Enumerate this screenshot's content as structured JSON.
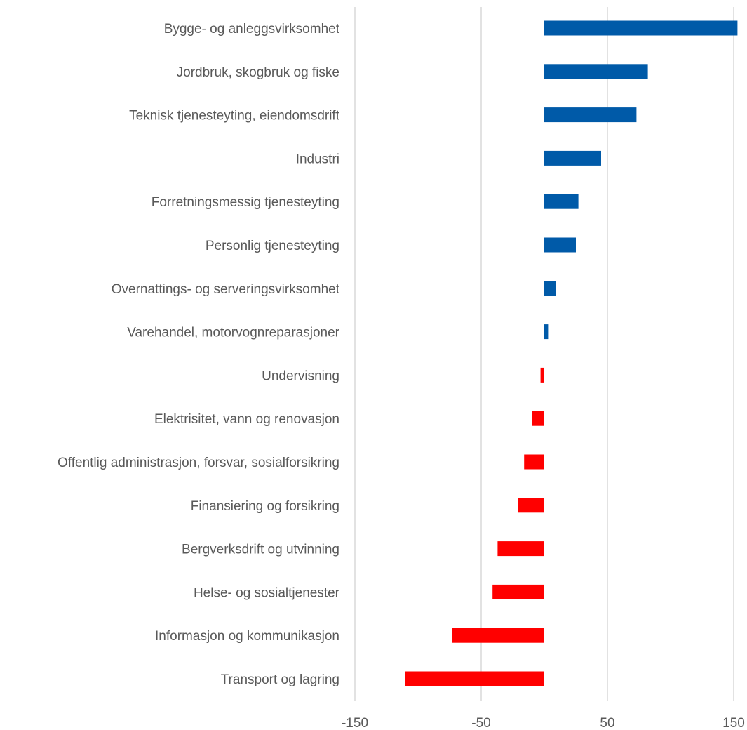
{
  "chart_data": {
    "type": "bar",
    "orientation": "horizontal",
    "categories": [
      "Bygge- og anleggsvirksomhet",
      "Jordbruk, skogbruk og fiske",
      "Teknisk tjenesteyting, eiendomsdrift",
      "Industri",
      "Forretningsmessig tjenesteyting",
      "Personlig tjenesteyting",
      "Overnattings- og serveringsvirksomhet",
      "Varehandel, motorvognreparasjoner",
      "Undervisning",
      "Elektrisitet, vann og renovasjon",
      "Offentlig administrasjon, forsvar, sosialforsikring",
      "Finansiering og forsikring",
      "Bergverksdrift og utvinning",
      "Helse- og sosialtjenester",
      "Informasjon og kommunikasjon",
      "Transport og lagring"
    ],
    "values": [
      153,
      82,
      73,
      45,
      27,
      25,
      9,
      3,
      -3,
      -10,
      -16,
      -21,
      -37,
      -41,
      -73,
      -110
    ],
    "xlim": [
      -150,
      150
    ],
    "xticks": [
      "-150",
      "-50",
      "50",
      "150"
    ],
    "grid": true,
    "legend": "none",
    "title": "",
    "xlabel": "",
    "ylabel": "",
    "colors": {
      "positive": "#005AA8",
      "negative": "#FF0000",
      "grid": "#D9D9D9",
      "text": "#595959"
    }
  }
}
